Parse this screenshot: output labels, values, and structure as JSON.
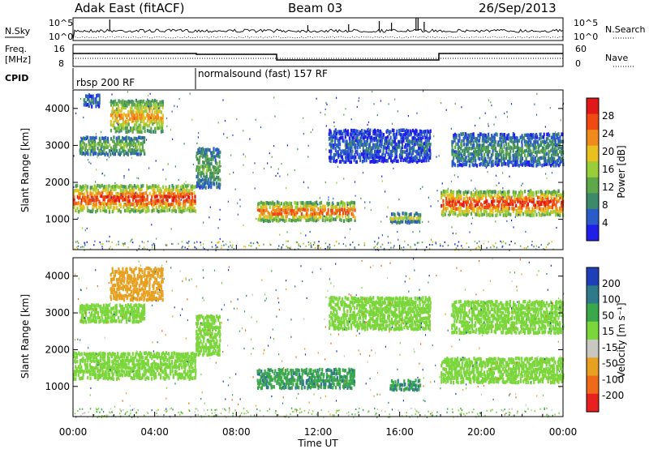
{
  "header": {
    "station": "Adak East (fitACF)",
    "beam": "Beam 03",
    "date": "26/Sep/2013"
  },
  "top_panels": {
    "nsky_label": "N.Sky",
    "nsky_ticks": [
      "10^5",
      "10^0"
    ],
    "nsearch_label": "N.Search",
    "nsearch_ticks": [
      "10^5",
      "10^0"
    ],
    "freq_label_1": "Freq.",
    "freq_label_2": "[MHz]",
    "freq_ticks": [
      "16",
      "8"
    ],
    "nave_label": "Nave",
    "nave_ticks": [
      "60",
      "0"
    ],
    "cpid_label": "CPID",
    "cpid_segments": [
      {
        "name": "rbsp 200 RF",
        "start_hour": 0,
        "end_hour": 6
      },
      {
        "name": "normalsound (fast) 157 RF",
        "start_hour": 6,
        "end_hour": 24
      }
    ]
  },
  "chart_data": [
    {
      "type": "heatmap",
      "title": "",
      "ylabel": "Slant Range [km]",
      "yticks": [
        "1000",
        "2000",
        "3000",
        "4000"
      ],
      "ylim": [
        180,
        4500
      ],
      "xlim": [
        0,
        24
      ],
      "colorbar": {
        "label": "Power [dB]",
        "ticks": [
          "4",
          "8",
          "12",
          "16",
          "20",
          "24",
          "28"
        ],
        "colors": [
          "#1f1fe8",
          "#2a5bc9",
          "#3d8a6a",
          "#5ea84a",
          "#9acd3a",
          "#e8c020",
          "#f08a1c",
          "#ee4a12",
          "#e01818"
        ]
      },
      "echo_bands": [
        {
          "t0": 0.0,
          "t1": 6.0,
          "r0": 1150,
          "r1": 1900,
          "level": 28
        },
        {
          "t0": 0.3,
          "t1": 3.5,
          "r0": 2700,
          "r1": 3200,
          "level": 14
        },
        {
          "t0": 1.8,
          "t1": 4.4,
          "r0": 3300,
          "r1": 4200,
          "level": 22
        },
        {
          "t0": 0.5,
          "t1": 1.3,
          "r0": 4000,
          "r1": 4350,
          "level": 8
        },
        {
          "t0": 6.0,
          "t1": 7.2,
          "r0": 1800,
          "r1": 2900,
          "level": 12
        },
        {
          "t0": 9.0,
          "t1": 13.8,
          "r0": 900,
          "r1": 1450,
          "level": 26
        },
        {
          "t0": 15.5,
          "t1": 17.0,
          "r0": 850,
          "r1": 1150,
          "level": 16
        },
        {
          "t0": 18.0,
          "t1": 24.0,
          "r0": 1050,
          "r1": 1750,
          "level": 28
        },
        {
          "t0": 18.5,
          "t1": 24.0,
          "r0": 2400,
          "r1": 3300,
          "level": 10
        },
        {
          "t0": 12.5,
          "t1": 17.5,
          "r0": 2500,
          "r1": 3400,
          "level": 6
        }
      ]
    },
    {
      "type": "heatmap",
      "title": "",
      "ylabel": "Slant Range [km]",
      "yticks": [
        "1000",
        "2000",
        "3000",
        "4000"
      ],
      "ylim": [
        180,
        4500
      ],
      "xlim": [
        0,
        24
      ],
      "xlabel": "Time UT",
      "xticks": [
        "00:00",
        "04:00",
        "08:00",
        "12:00",
        "16:00",
        "20:00",
        "00:00"
      ],
      "colorbar": {
        "label": "Velocity [m s⁻¹]",
        "ticks": [
          "200",
          "100",
          "50",
          "15",
          "-15",
          "-50",
          "-100",
          "-200"
        ],
        "colors": [
          "#1e3fb8",
          "#2e7a8a",
          "#3aa84a",
          "#7ad63a",
          "#c8c8c0",
          "#e8a020",
          "#ee6a18",
          "#e82020"
        ]
      },
      "echo_bands": [
        {
          "t0": 0.0,
          "t1": 6.0,
          "r0": 1150,
          "r1": 1900,
          "level": 0
        },
        {
          "t0": 0.3,
          "t1": 3.5,
          "r0": 2700,
          "r1": 3200,
          "level": 0
        },
        {
          "t0": 1.8,
          "t1": 4.4,
          "r0": 3300,
          "r1": 4200,
          "level": -80
        },
        {
          "t0": 6.0,
          "t1": 7.2,
          "r0": 1800,
          "r1": 2900,
          "level": 0
        },
        {
          "t0": 9.0,
          "t1": 13.8,
          "r0": 900,
          "r1": 1450,
          "level": 40
        },
        {
          "t0": 15.5,
          "t1": 17.0,
          "r0": 850,
          "r1": 1150,
          "level": 40
        },
        {
          "t0": 18.0,
          "t1": 24.0,
          "r0": 1050,
          "r1": 1750,
          "level": 0
        },
        {
          "t0": 18.5,
          "t1": 24.0,
          "r0": 2400,
          "r1": 3300,
          "level": 0
        },
        {
          "t0": 12.5,
          "t1": 17.5,
          "r0": 2500,
          "r1": 3400,
          "level": 0
        }
      ]
    }
  ]
}
